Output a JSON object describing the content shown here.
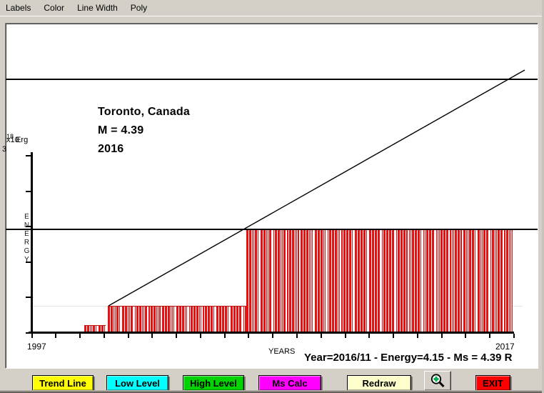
{
  "menu": {
    "items": [
      {
        "label": "Labels"
      },
      {
        "label": "Color"
      },
      {
        "label": "Line Width"
      },
      {
        "label": "Poly"
      }
    ]
  },
  "chart": {
    "annotation": {
      "line1": "Toronto, Canada",
      "line2": "M = 4.39",
      "line3": "2016"
    },
    "y_scale": {
      "prefix": "x10",
      "exponent": "18",
      "unit": "Erg",
      "top_tick_value": "3"
    },
    "y_title": "ENERGY",
    "x_title": "YEARS",
    "x_start_label": "1997",
    "x_end_label": "2017",
    "status": "Year=2016/11 - Energy=4.15 - Ms = 4.39 R"
  },
  "chart_data": {
    "type": "bar",
    "title": "Toronto, Canada",
    "annotation_lines": [
      "Toronto, Canada",
      "M = 4.39",
      "2016"
    ],
    "xlabel": "YEARS",
    "ylabel": "ENERGY",
    "y_unit": "x10^18 Erg",
    "x_range": [
      1997,
      2017
    ],
    "y_axis_top_tick": 3,
    "bar_color": "#e81111",
    "bar_groups": [
      {
        "year_start": 1999.2,
        "year_end": 2000.1,
        "energy_level": 0.11
      },
      {
        "year_start": 2000.1,
        "year_end": 2006.0,
        "energy_level": 0.45
      },
      {
        "year_start": 2006.0,
        "year_end": 2017.0,
        "energy_level": 1.76
      }
    ],
    "reference_lines": [
      {
        "orientation": "horizontal",
        "energy_level": 4.3,
        "style": "solid black"
      },
      {
        "orientation": "horizontal",
        "energy_level": 1.76,
        "style": "solid black"
      },
      {
        "orientation": "horizontal",
        "energy_level": 0.45,
        "style": "faint gray"
      }
    ],
    "trend_line": {
      "from_year": 2000.1,
      "from_energy": 0.45,
      "to_year": 2017.5,
      "to_energy": 4.45
    },
    "status_readout": {
      "year": "2016/11",
      "energy": "4.15",
      "ms": "4.39 R"
    }
  },
  "toolbar": {
    "buttons": [
      {
        "label": "Trend Line",
        "color": "#ffff00"
      },
      {
        "label": "Low Level",
        "color": "#00ffff"
      },
      {
        "label": "High Level",
        "color": "#00d300"
      },
      {
        "label": "Ms Calc",
        "color": "#ff00ff"
      },
      {
        "label": "Redraw",
        "color": "#ffffcc"
      },
      {
        "label": "EXIT",
        "color": "#ff0000"
      }
    ],
    "zoom_tool_icon": "magnifier-plus"
  },
  "colors": {
    "window_bg": "#d4d0c8",
    "panel_bg": "#ffffff",
    "bar_red": "#e81111",
    "trend_line": "#000000"
  }
}
